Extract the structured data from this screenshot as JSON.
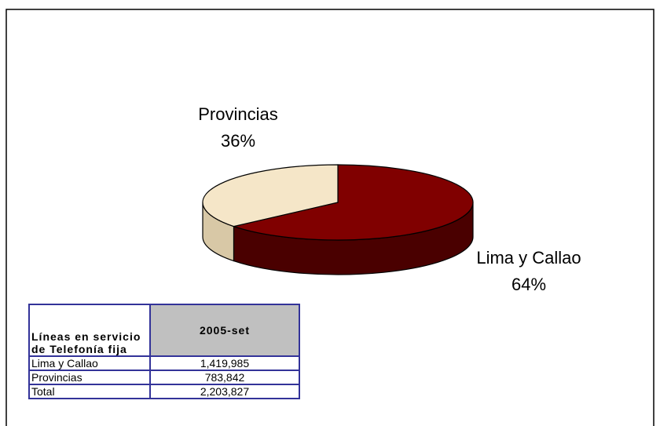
{
  "chart_data": {
    "type": "pie",
    "categories": [
      "Lima y Callao",
      "Provincias"
    ],
    "values": [
      64,
      36
    ],
    "value_labels": [
      "64%",
      "36%"
    ],
    "colors": [
      "#800000",
      "#f5e6c8"
    ],
    "side_colors": [
      "#4a0000",
      "#d8c8a6"
    ]
  },
  "table": {
    "header": [
      "Líneas en servicio de Telefonía fija",
      "2005-set"
    ],
    "rows": [
      [
        "Lima y Callao",
        "1,419,985"
      ],
      [
        "Provincias",
        "783,842"
      ],
      [
        "Total",
        "2,203,827"
      ]
    ]
  }
}
